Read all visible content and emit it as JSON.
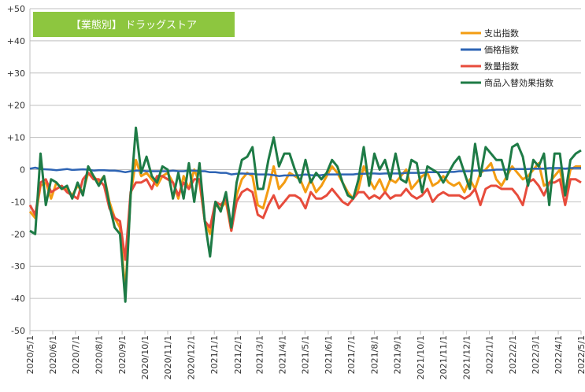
{
  "chart_data": {
    "type": "line",
    "title": "【業態別】 ドラッグストア",
    "title_bg_color": "#8dc63f",
    "xlabel": "",
    "ylabel": "",
    "ylim": [
      -50,
      50
    ],
    "yticks": [
      50,
      40,
      30,
      20,
      10,
      0,
      -10,
      -20,
      -30,
      -40,
      -50
    ],
    "ytick_labels": [
      "+50",
      "+40",
      "+30",
      "+20",
      "+10",
      "0",
      "-10",
      "-20",
      "-30",
      "-40",
      "-50"
    ],
    "xlim": [
      0,
      104
    ],
    "xticks": [
      0,
      4.3,
      8.6,
      13,
      17.4,
      21.7,
      26,
      30.4,
      34.8,
      39.2,
      43.3,
      47.6,
      51.9,
      56.3,
      60.6,
      65,
      69.3,
      73.7,
      78,
      82.4,
      86.7,
      91.1,
      95.4,
      99.7,
      104
    ],
    "xtick_labels": [
      "2020/5/1",
      "2020/6/1",
      "2020/7/1",
      "2020/8/1",
      "2020/9/1",
      "2020/10/1",
      "2020/11/1",
      "2020/12/1",
      "2021/1/1",
      "2021/2/1",
      "2021/3/1",
      "2021/4/1",
      "2021/5/1",
      "2021/6/1",
      "2021/7/1",
      "2021/8/1",
      "2021/9/1",
      "2021/10/1",
      "2021/11/1",
      "2021/12/1",
      "2022/1/1",
      "2022/2/1",
      "2022/3/1",
      "2022/4/1",
      "2022/5/1"
    ],
    "grid": "horizontal",
    "legend_position": "top-right",
    "series": [
      {
        "name": "支出指数",
        "color": "#f39c12",
        "y": [
          -13,
          -15,
          -5,
          -4,
          -9,
          -4,
          -6,
          -6,
          -8,
          -5,
          -7,
          -1,
          -2,
          -4,
          -2,
          -10,
          -15,
          -18,
          -38,
          -8,
          3,
          -2,
          -1,
          -3,
          -5,
          -2,
          -1,
          -4,
          -9,
          -2,
          -6,
          0,
          -4,
          -16,
          -20,
          -11,
          -12,
          -10,
          -19,
          -8,
          -3,
          -1,
          -2,
          -11,
          -12,
          -6,
          1,
          -6,
          -4,
          -1,
          -2,
          -3,
          -7,
          -3,
          -7,
          -5,
          -2,
          1,
          -1,
          -4,
          -7,
          -9,
          -6,
          1,
          -3,
          -6,
          -3,
          -7,
          -3,
          -4,
          -2,
          0,
          -6,
          -4,
          -2,
          -1,
          -5,
          -4,
          -2,
          -4,
          -5,
          -4,
          -7,
          -3,
          -6,
          -1,
          0,
          2,
          -3,
          -5,
          -2,
          1,
          -1,
          -3,
          -2,
          0,
          2,
          -5,
          -4,
          -2,
          0,
          -8,
          0,
          1,
          1
        ]
      },
      {
        "name": "価格指数",
        "color": "#2e64b4",
        "y": [
          0.3,
          0.6,
          0.2,
          0.1,
          0,
          -0.2,
          0,
          0.2,
          -0.1,
          0,
          0.1,
          0,
          -0.3,
          -0.2,
          -0.2,
          -0.3,
          -0.3,
          -0.5,
          -0.8,
          -0.5,
          -0.3,
          -0.3,
          -0.5,
          -0.5,
          -0.5,
          -0.5,
          -0.5,
          -0.3,
          -0.5,
          -0.5,
          -0.3,
          -0.3,
          -0.5,
          -0.5,
          -0.8,
          -0.8,
          -1,
          -1,
          -1.5,
          -1.3,
          -1.2,
          -1.3,
          -1.3,
          -1.5,
          -1.5,
          -1.5,
          -1.7,
          -2,
          -1.8,
          -1.8,
          -1.8,
          -1.7,
          -1.5,
          -1.7,
          -1.8,
          -1.7,
          -1.5,
          -1.5,
          -1.5,
          -1.5,
          -1.5,
          -1.5,
          -1.3,
          -1.3,
          -1.2,
          -1.2,
          -1.3,
          -1.2,
          -1.2,
          -1.2,
          -1.2,
          -1,
          -1,
          -1,
          -1,
          -0.8,
          -0.8,
          -0.8,
          -0.8,
          -0.7,
          -0.7,
          -0.5,
          -0.5,
          -0.5,
          -0.3,
          -0.3,
          -0.3,
          -0.2,
          0,
          0,
          0,
          0.2,
          0.2,
          0.2,
          0.2,
          0.3,
          0.3,
          0.3,
          0.5,
          0.5,
          0.5,
          0.3,
          0.5,
          0.5,
          0.5
        ]
      },
      {
        "name": "数量指数",
        "color": "#e74c3c",
        "y": [
          -11,
          -14,
          -4,
          -3,
          -7,
          -6,
          -5,
          -7,
          -8,
          -9,
          -3,
          -1,
          -3,
          -3,
          -5,
          -12,
          -15,
          -16,
          -28,
          -7,
          -4,
          -4,
          -3,
          -6,
          -2,
          -2,
          -3,
          -4,
          -8,
          -4,
          -6,
          -3,
          -3,
          -16,
          -18,
          -10,
          -11,
          -9,
          -19,
          -10,
          -7,
          -6,
          -7,
          -14,
          -15,
          -11,
          -8,
          -12,
          -10,
          -8,
          -8,
          -9,
          -12,
          -7,
          -9,
          -9,
          -8,
          -6,
          -8,
          -10,
          -11,
          -9,
          -7,
          -7,
          -9,
          -8,
          -9,
          -7,
          -9,
          -8,
          -8,
          -6,
          -8,
          -9,
          -8,
          -6,
          -10,
          -8,
          -7,
          -8,
          -8,
          -8,
          -9,
          -8,
          -6,
          -11,
          -6,
          -5,
          -5,
          -6,
          -6,
          -6,
          -8,
          -11,
          -4,
          -3,
          -5,
          -8,
          -4,
          -4,
          -3,
          -11,
          -3,
          -3,
          -4
        ]
      },
      {
        "name": "商品入替効果指数",
        "color": "#1e7b46",
        "y": [
          -19,
          -20,
          5,
          -11,
          -3,
          -4,
          -6,
          -5,
          -9,
          -4,
          -8,
          1,
          -2,
          -5,
          -2,
          -11,
          -18,
          -20,
          -41,
          -8,
          13,
          -1,
          4,
          -2,
          -4,
          1,
          0,
          -9,
          -1,
          -9,
          2,
          -10,
          2,
          -16,
          -27,
          -10,
          -13,
          -7,
          -18,
          -4,
          3,
          4,
          7,
          -6,
          -6,
          3,
          10,
          1,
          5,
          5,
          0,
          -4,
          3,
          -4,
          -1,
          -3,
          -1,
          3,
          1,
          -4,
          -8,
          -9,
          -3,
          7,
          -5,
          5,
          0,
          3,
          -3,
          5,
          -3,
          -4,
          3,
          2,
          -7,
          1,
          0,
          -1,
          -4,
          -1,
          2,
          4,
          -1,
          -6,
          8,
          -2,
          7,
          5,
          3,
          3,
          -3,
          7,
          8,
          4,
          -5,
          3,
          1,
          5,
          -11,
          5,
          5,
          -8,
          3,
          5,
          6
        ]
      }
    ]
  }
}
